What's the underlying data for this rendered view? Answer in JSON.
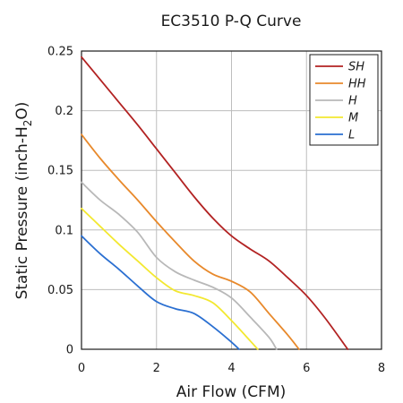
{
  "chart_data": {
    "type": "line",
    "title": "EC3510 P-Q Curve",
    "xlabel": "Air Flow (CFM)",
    "ylabel_main": "Static Pressure (inch-H",
    "ylabel_sub": "2",
    "ylabel_end": "O)",
    "xlim": [
      0,
      8
    ],
    "ylim": [
      0,
      0.25
    ],
    "xticks": [
      0,
      2,
      4,
      6,
      8
    ],
    "xtick_labels": [
      "0",
      "2",
      "4",
      "6",
      "8"
    ],
    "yticks": [
      0,
      0.05,
      0.1,
      0.15,
      0.2,
      0.25
    ],
    "ytick_labels": [
      "0",
      "0.05",
      "0.1",
      "0.15",
      "0.2",
      "0.25"
    ],
    "grid": true,
    "legend_position": "top-right",
    "series": [
      {
        "name": "SH",
        "color": "#b22222",
        "points": [
          [
            0,
            0.245
          ],
          [
            0.5,
            0.226
          ],
          [
            1,
            0.207
          ],
          [
            1.5,
            0.188
          ],
          [
            2,
            0.168
          ],
          [
            2.5,
            0.148
          ],
          [
            3,
            0.128
          ],
          [
            3.5,
            0.11
          ],
          [
            4,
            0.095
          ],
          [
            4.5,
            0.084
          ],
          [
            5,
            0.074
          ],
          [
            5.5,
            0.06
          ],
          [
            6,
            0.045
          ],
          [
            6.5,
            0.026
          ],
          [
            7.1,
            0
          ]
        ]
      },
      {
        "name": "HH",
        "color": "#e8892b",
        "points": [
          [
            0,
            0.18
          ],
          [
            0.5,
            0.16
          ],
          [
            1,
            0.142
          ],
          [
            1.5,
            0.125
          ],
          [
            2,
            0.107
          ],
          [
            2.5,
            0.09
          ],
          [
            3,
            0.074
          ],
          [
            3.5,
            0.063
          ],
          [
            4,
            0.057
          ],
          [
            4.5,
            0.048
          ],
          [
            5,
            0.03
          ],
          [
            5.5,
            0.012
          ],
          [
            5.8,
            0
          ]
        ]
      },
      {
        "name": "H",
        "color": "#b8b8b8",
        "points": [
          [
            0,
            0.14
          ],
          [
            0.5,
            0.125
          ],
          [
            1,
            0.113
          ],
          [
            1.5,
            0.098
          ],
          [
            2,
            0.077
          ],
          [
            2.5,
            0.065
          ],
          [
            3,
            0.058
          ],
          [
            3.5,
            0.052
          ],
          [
            4,
            0.043
          ],
          [
            4.5,
            0.027
          ],
          [
            5,
            0.01
          ],
          [
            5.2,
            0
          ]
        ]
      },
      {
        "name": "M",
        "color": "#f3e830",
        "points": [
          [
            0,
            0.118
          ],
          [
            0.5,
            0.103
          ],
          [
            1,
            0.088
          ],
          [
            1.5,
            0.074
          ],
          [
            2,
            0.06
          ],
          [
            2.5,
            0.049
          ],
          [
            3,
            0.045
          ],
          [
            3.5,
            0.039
          ],
          [
            4,
            0.024
          ],
          [
            4.5,
            0.007
          ],
          [
            4.7,
            0
          ]
        ]
      },
      {
        "name": "L",
        "color": "#2a6fd1",
        "points": [
          [
            0,
            0.095
          ],
          [
            0.5,
            0.08
          ],
          [
            1,
            0.067
          ],
          [
            1.5,
            0.053
          ],
          [
            2,
            0.04
          ],
          [
            2.5,
            0.034
          ],
          [
            3,
            0.03
          ],
          [
            3.5,
            0.019
          ],
          [
            4,
            0.006
          ],
          [
            4.2,
            0
          ]
        ]
      }
    ]
  }
}
